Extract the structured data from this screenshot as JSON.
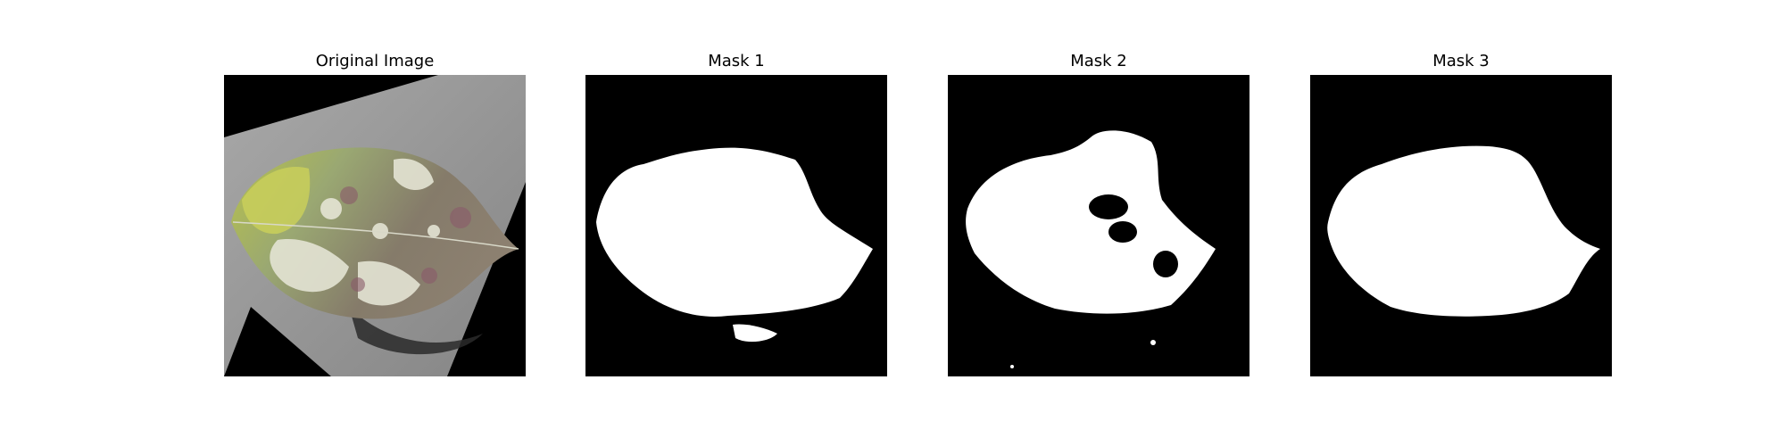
{
  "figure": {
    "panels": [
      {
        "title": "Original Image",
        "content": "photo of a diseased leaf on a rotated grey background"
      },
      {
        "title": "Mask 1",
        "content": "binary segmentation mask"
      },
      {
        "title": "Mask 2",
        "content": "binary segmentation mask"
      },
      {
        "title": "Mask 3",
        "content": "binary segmentation mask"
      }
    ]
  },
  "colors": {
    "mask_foreground": "#ffffff",
    "mask_background": "#000000",
    "photo_background": "#999999",
    "leaf_green": "#8a9a6a"
  }
}
